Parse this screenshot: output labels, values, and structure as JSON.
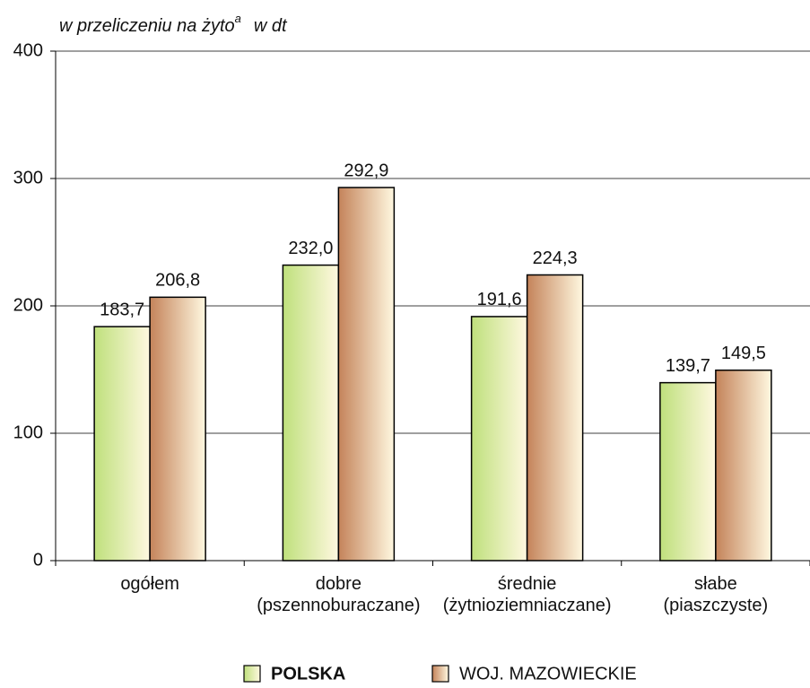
{
  "chart_data": {
    "type": "bar",
    "y_label": "w przeliczeniu na żyto",
    "y_label_superscript": "a",
    "y_label_unit": "w dt",
    "categories": [
      "ogółem",
      "dobre\n(pszennoburaczane)",
      "średnie\n(żytnioziemniaczane)",
      "słabe\n(piaszczyste)"
    ],
    "series": [
      {
        "name": "POLSKA",
        "color": "#bfe07c",
        "values": [
          183.7,
          232.0,
          191.6,
          139.7
        ],
        "value_labels": [
          "183,7",
          "232,0",
          "191,6",
          "139,7"
        ]
      },
      {
        "name": "WOJ. MAZOWIECKIE",
        "color": "#c4835a",
        "values": [
          206.8,
          292.9,
          224.3,
          149.5
        ],
        "value_labels": [
          "206,8",
          "292,9",
          "224,3",
          "149,5"
        ]
      }
    ],
    "ylim": [
      0,
      400
    ],
    "yticks": [
      0,
      100,
      200,
      300,
      400
    ],
    "grid": true
  }
}
